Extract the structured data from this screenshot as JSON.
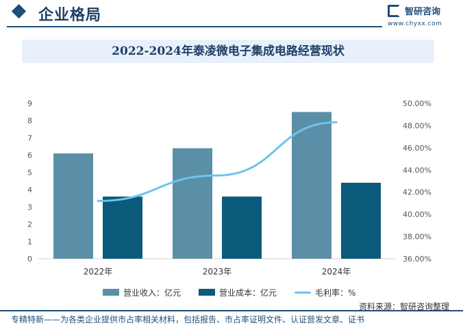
{
  "header": {
    "section_title": "企业格局",
    "logo_name": "智研咨询",
    "logo_url": "www.chyxx.com"
  },
  "title": "2022-2024年泰凌微电子集成电路经营现状",
  "chart_data": {
    "type": "bar",
    "categories": [
      "2022年",
      "2023年",
      "2024年"
    ],
    "series": [
      {
        "name": "营业收入：亿元",
        "kind": "bar",
        "axis": "left",
        "color": "#5b8fa8",
        "values": [
          6.1,
          6.4,
          8.5
        ]
      },
      {
        "name": "营业成本：亿元",
        "kind": "bar",
        "axis": "left",
        "color": "#0b5a7c",
        "values": [
          3.6,
          3.6,
          4.4
        ]
      },
      {
        "name": "毛利率：%",
        "kind": "line",
        "axis": "right",
        "color": "#6ac5ee",
        "values": [
          41.2,
          43.5,
          48.3
        ]
      }
    ],
    "left_axis": {
      "ylim": [
        0,
        9
      ],
      "ticks": [
        "0",
        "1",
        "2",
        "3",
        "4",
        "5",
        "6",
        "7",
        "8",
        "9"
      ]
    },
    "right_axis": {
      "ylim": [
        36,
        50
      ],
      "ticks": [
        "36.00%",
        "38.00%",
        "40.00%",
        "42.00%",
        "44.00%",
        "46.00%",
        "48.00%",
        "50.00%"
      ]
    },
    "grid": false,
    "legend_position": "bottom"
  },
  "source": "资料来源：智研咨询整理",
  "footer": "专精特新——为各类企业提供市占率相关材料，包括报告、市占率证明文件、认证营发文章、证书"
}
